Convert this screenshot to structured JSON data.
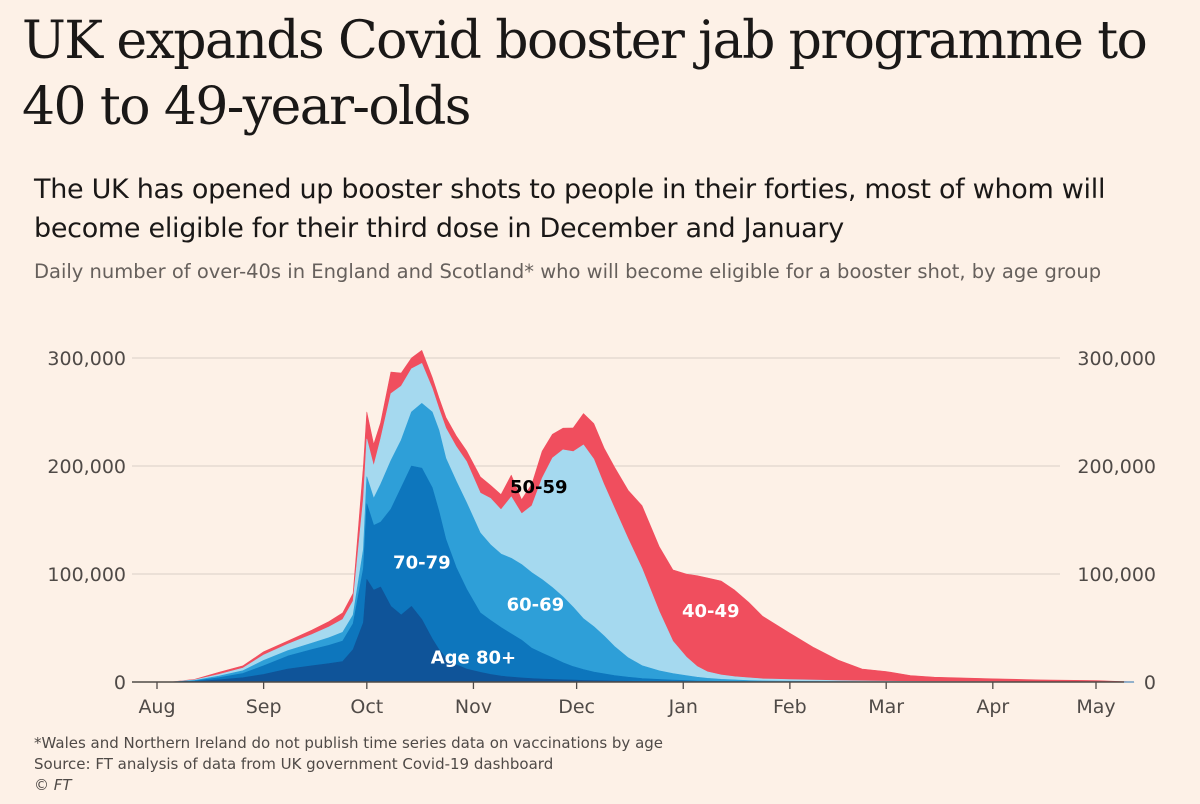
{
  "headline": "UK expands Covid booster jab programme to 40 to 49-year-olds",
  "chart_data": {
    "type": "area",
    "stacked": true,
    "title": "The UK has opened up booster shots to people in their forties, most of whom will become eligible for their third dose in December and January",
    "subtitle": "Daily number of over-40s in England and Scotland* who will become eligible for a booster shot, by age group",
    "xlabel": "",
    "ylabel": "",
    "x_ticks": [
      "Aug",
      "Sep",
      "Oct",
      "Nov",
      "Dec",
      "Jan",
      "Feb",
      "Mar",
      "Apr",
      "May"
    ],
    "y_ticks": [
      "0",
      "100,000",
      "200,000",
      "300,000"
    ],
    "ylim": [
      0,
      320000
    ],
    "grid": true,
    "x": [
      "Jul 25",
      "Aug 5",
      "Aug 12",
      "Aug 19",
      "Aug 26",
      "Sep 1",
      "Sep 8",
      "Sep 15",
      "Sep 20",
      "Sep 24",
      "Sep 27",
      "Sep 30",
      "Oct 1",
      "Oct 3",
      "Oct 5",
      "Oct 8",
      "Oct 11",
      "Oct 14",
      "Oct 17",
      "Oct 20",
      "Oct 22",
      "Oct 24",
      "Oct 27",
      "Oct 30",
      "Nov 3",
      "Nov 6",
      "Nov 9",
      "Nov 12",
      "Nov 15",
      "Nov 18",
      "Nov 21",
      "Nov 24",
      "Nov 27",
      "Nov 30",
      "Dec 3",
      "Dec 6",
      "Dec 9",
      "Dec 12",
      "Dec 16",
      "Dec 20",
      "Dec 25",
      "Dec 29",
      "Jan 2",
      "Jan 5",
      "Jan 8",
      "Jan 12",
      "Jan 16",
      "Jan 20",
      "Jan 24",
      "Feb 1",
      "Feb 8",
      "Feb 15",
      "Feb 22",
      "Mar 1",
      "Mar 8",
      "Mar 15",
      "Apr 1",
      "Apr 15",
      "May 1",
      "May 12"
    ],
    "series": [
      {
        "name": "Age 80+",
        "color": "#0f5499",
        "values": [
          0,
          0,
          500,
          2000,
          4000,
          7000,
          12000,
          15000,
          17000,
          19000,
          30000,
          55000,
          95000,
          85000,
          88000,
          70000,
          62000,
          70000,
          58000,
          40000,
          30000,
          22000,
          16000,
          12000,
          9000,
          7000,
          5500,
          4500,
          3800,
          3200,
          2800,
          2400,
          2000,
          1800,
          1500,
          1300,
          1100,
          900,
          700,
          500,
          400,
          300,
          200,
          150,
          100,
          80,
          60,
          40,
          30,
          20,
          10,
          0,
          0,
          0,
          0,
          0,
          0,
          0,
          0,
          0
        ]
      },
      {
        "name": "70-79",
        "color": "#0d76bd",
        "values": [
          0,
          0,
          500,
          2000,
          4000,
          8000,
          12000,
          15000,
          17000,
          19000,
          24000,
          50000,
          70000,
          60000,
          60000,
          90000,
          118000,
          130000,
          140000,
          140000,
          128000,
          110000,
          90000,
          74000,
          55000,
          50000,
          45000,
          40000,
          35000,
          28000,
          24000,
          20000,
          16000,
          12500,
          10000,
          8000,
          6500,
          5000,
          3700,
          2700,
          2000,
          1500,
          1100,
          800,
          600,
          450,
          350,
          250,
          150,
          100,
          60,
          30,
          0,
          0,
          0,
          0,
          0,
          0,
          0,
          0
        ]
      },
      {
        "name": "60-69",
        "color": "#2e9fd8",
        "values": [
          0,
          0,
          500,
          1500,
          2500,
          5000,
          5000,
          6000,
          7000,
          8000,
          8000,
          18000,
          25000,
          25000,
          35000,
          45000,
          44000,
          50000,
          60000,
          70000,
          75000,
          75000,
          80000,
          80000,
          74000,
          70000,
          68000,
          70000,
          70000,
          70000,
          68000,
          65000,
          61000,
          55000,
          47000,
          42000,
          35000,
          27000,
          18000,
          12000,
          8000,
          6000,
          4500,
          3500,
          2700,
          2000,
          1500,
          1100,
          800,
          600,
          450,
          300,
          200,
          100,
          50,
          0,
          0,
          0,
          0,
          0
        ]
      },
      {
        "name": "50-59",
        "color": "#a5d9ef",
        "values": [
          0,
          0,
          500,
          1500,
          2500,
          5000,
          6000,
          8000,
          10000,
          12000,
          13000,
          47000,
          35000,
          30000,
          42000,
          62000,
          50000,
          40000,
          37000,
          22000,
          20000,
          28000,
          32000,
          38000,
          37000,
          43000,
          41000,
          57000,
          47000,
          62000,
          94000,
          120000,
          136000,
          144000,
          161000,
          155000,
          140000,
          128000,
          110000,
          90000,
          55000,
          30000,
          17000,
          10000,
          6000,
          4000,
          3000,
          2500,
          2000,
          1500,
          1200,
          1000,
          800,
          600,
          500,
          400,
          250,
          150,
          100,
          0
        ]
      },
      {
        "name": "40-49",
        "color": "#f04e5e",
        "values": [
          0,
          0,
          500,
          2000,
          2000,
          3000,
          3000,
          4000,
          5000,
          6000,
          7000,
          30000,
          25000,
          20000,
          15000,
          20000,
          12000,
          10000,
          12000,
          10000,
          10000,
          10000,
          10000,
          10000,
          15000,
          12000,
          14000,
          20000,
          13000,
          20000,
          25000,
          22000,
          20000,
          22000,
          29000,
          33000,
          34000,
          38000,
          45000,
          58000,
          60000,
          66000,
          77000,
          84000,
          87000,
          87000,
          80000,
          70000,
          58000,
          43000,
          30000,
          19000,
          11000,
          9000,
          5500,
          4000,
          2700,
          1800,
          1200,
          0
        ]
      }
    ],
    "annotations": [
      {
        "text": "Age 80+",
        "series": "Age 80+",
        "color": "#ffffff",
        "at": [
          "Nov 1",
          17000
        ]
      },
      {
        "text": "70-79",
        "series": "70-79",
        "color": "#ffffff",
        "at": [
          "Oct 17",
          105000
        ]
      },
      {
        "text": "60-69",
        "series": "60-69",
        "color": "#ffffff",
        "at": [
          "Nov 19",
          66000
        ]
      },
      {
        "text": "50-59",
        "series": "50-59",
        "color": "#000000",
        "at": [
          "Nov 20",
          175000
        ]
      },
      {
        "text": "40-49",
        "series": "40-49",
        "color": "#ffffff",
        "at": [
          "Jan 9",
          60000
        ]
      }
    ]
  },
  "footer": {
    "note": "*Wales and Northern Ireland do not publish time series data on vaccinations by age",
    "source": "Source: FT analysis of data from UK government Covid-19 dashboard",
    "credit": "© FT"
  }
}
